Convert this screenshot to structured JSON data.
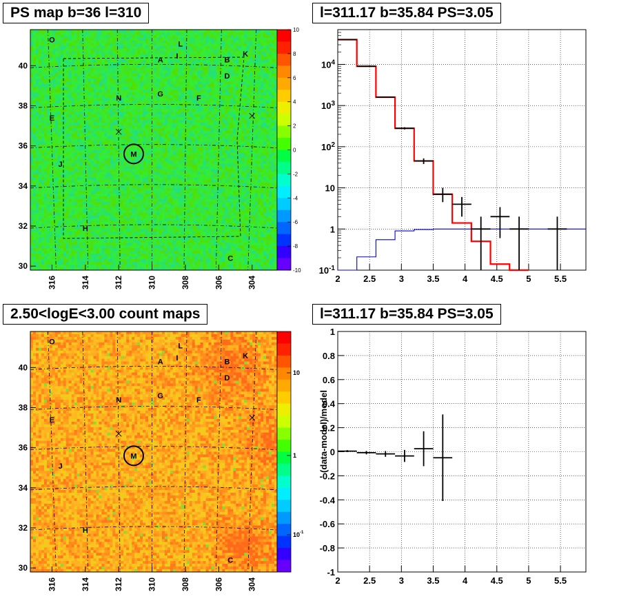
{
  "chart_data": [
    {
      "type": "heatmap",
      "title": "PS map b=36 l=310",
      "x_ticks": [
        "316",
        "314",
        "312",
        "310",
        "308",
        "306",
        "304"
      ],
      "y_ticks": [
        "30",
        "32",
        "34",
        "36",
        "38",
        "40"
      ],
      "colorbar_ticks": [
        "10",
        "8",
        "6",
        "4",
        "2",
        "0",
        "-2",
        "-4",
        "-6",
        "-8",
        "-10"
      ],
      "colorbar_range": [
        -10,
        10
      ],
      "map_tint": "green",
      "source_labels": [
        {
          "label": "O",
          "l": 316.0,
          "b": 41.3
        },
        {
          "label": "L",
          "l": 308.3,
          "b": 41.1
        },
        {
          "label": "I",
          "l": 308.5,
          "b": 40.5
        },
        {
          "label": "K",
          "l": 304.4,
          "b": 40.6
        },
        {
          "label": "A",
          "l": 309.5,
          "b": 40.3
        },
        {
          "label": "B",
          "l": 305.5,
          "b": 40.3
        },
        {
          "label": "D",
          "l": 305.5,
          "b": 39.5
        },
        {
          "label": "N",
          "l": 312.0,
          "b": 38.4
        },
        {
          "label": "G",
          "l": 309.5,
          "b": 38.6
        },
        {
          "label": "F",
          "l": 307.2,
          "b": 38.4
        },
        {
          "label": "E",
          "l": 316.0,
          "b": 37.4
        },
        {
          "label": "J",
          "l": 315.5,
          "b": 35.1
        },
        {
          "label": "H",
          "l": 314.0,
          "b": 31.9
        },
        {
          "label": "C",
          "l": 305.3,
          "b": 30.4
        }
      ],
      "circled_source": {
        "label": "M",
        "l": 311.1,
        "b": 35.6
      },
      "cross_markers": [
        {
          "l": 312.0,
          "b": 36.7
        },
        {
          "l": 304.0,
          "b": 37.5
        }
      ]
    },
    {
      "type": "line",
      "title": "l=311.17 b=35.84 PS=3.05",
      "xlim": [
        2.0,
        5.9
      ],
      "ylim": [
        0.1,
        70000
      ],
      "ylog": true,
      "x_ticks": [
        "2",
        "2.5",
        "3",
        "3.5",
        "4",
        "4.5",
        "5",
        "5.5"
      ],
      "y_ticks": [
        "10^{-1}",
        "1",
        "10",
        "10^{2}",
        "10^{3}",
        "10^{4}"
      ],
      "series": [
        {
          "color": "#ff0000",
          "edges": [
            2.0,
            2.3,
            2.6,
            2.9,
            3.2,
            3.5,
            3.8,
            4.1,
            4.4,
            4.7,
            5.0
          ],
          "values": [
            40000,
            9000,
            1600,
            280,
            45,
            7,
            1.4,
            0.5,
            0.14,
            0.1
          ]
        },
        {
          "color": "#0000cc",
          "edges": [
            2.0,
            2.3,
            2.6,
            2.9,
            3.2,
            3.5,
            3.8,
            4.1,
            4.4,
            4.7,
            5.0,
            5.3,
            5.9
          ],
          "values": [
            0.09,
            0.21,
            0.55,
            0.9,
            0.97,
            1.0,
            1.0,
            1.0,
            1.0,
            1.0,
            1.0,
            1.0
          ]
        },
        {
          "color": "#000000",
          "points": [
            {
              "x": 2.15,
              "y": 40000,
              "xe": 0.15,
              "lo": 39800,
              "hi": 40200
            },
            {
              "x": 2.45,
              "y": 9000,
              "xe": 0.15,
              "lo": 8900,
              "hi": 9100
            },
            {
              "x": 2.75,
              "y": 1600,
              "xe": 0.15,
              "lo": 1560,
              "hi": 1640
            },
            {
              "x": 3.05,
              "y": 280,
              "xe": 0.15,
              "lo": 263,
              "hi": 297
            },
            {
              "x": 3.35,
              "y": 45,
              "xe": 0.15,
              "lo": 38,
              "hi": 52
            },
            {
              "x": 3.65,
              "y": 7,
              "xe": 0.15,
              "lo": 4.5,
              "hi": 10
            },
            {
              "x": 3.95,
              "y": 4,
              "xe": 0.15,
              "lo": 2,
              "hi": 6
            },
            {
              "x": 4.25,
              "y": 1,
              "xe": 0.15,
              "lo": 0.1,
              "hi": 2
            },
            {
              "x": 4.55,
              "y": 2,
              "xe": 0.15,
              "lo": 0.6,
              "hi": 3.4
            },
            {
              "x": 4.85,
              "y": 1,
              "xe": 0.15,
              "lo": 0.1,
              "hi": 2
            },
            {
              "x": 5.45,
              "y": 1,
              "xe": 0.15,
              "lo": 0.1,
              "hi": 2
            }
          ]
        }
      ]
    },
    {
      "type": "heatmap",
      "title": "2.50<logE<3.00 count maps",
      "x_ticks": [
        "316",
        "314",
        "312",
        "310",
        "308",
        "306",
        "304"
      ],
      "y_ticks": [
        "30",
        "32",
        "34",
        "36",
        "38",
        "40"
      ],
      "colorbar_ticks": [
        "10",
        "1",
        "10^{-1}"
      ],
      "colorbar_log": true,
      "map_tint": "orange",
      "source_labels": [
        {
          "label": "O",
          "l": 316.0,
          "b": 41.3
        },
        {
          "label": "L",
          "l": 308.3,
          "b": 41.1
        },
        {
          "label": "I",
          "l": 308.5,
          "b": 40.5
        },
        {
          "label": "K",
          "l": 304.4,
          "b": 40.6
        },
        {
          "label": "A",
          "l": 309.5,
          "b": 40.3
        },
        {
          "label": "B",
          "l": 305.5,
          "b": 40.3
        },
        {
          "label": "D",
          "l": 305.5,
          "b": 39.5
        },
        {
          "label": "N",
          "l": 312.0,
          "b": 38.4
        },
        {
          "label": "G",
          "l": 309.5,
          "b": 38.6
        },
        {
          "label": "F",
          "l": 307.2,
          "b": 38.4
        },
        {
          "label": "E",
          "l": 316.0,
          "b": 37.4
        },
        {
          "label": "J",
          "l": 315.5,
          "b": 35.1
        },
        {
          "label": "H",
          "l": 314.0,
          "b": 31.9
        },
        {
          "label": "C",
          "l": 305.3,
          "b": 30.4
        }
      ],
      "circled_source": {
        "label": "M",
        "l": 311.1,
        "b": 35.6
      },
      "cross_markers": [
        {
          "l": 312.0,
          "b": 36.7
        },
        {
          "l": 304.0,
          "b": 37.5
        }
      ]
    },
    {
      "type": "scatter",
      "title": "l=311.17 b=35.84 PS=3.05",
      "ylabel": "(data-model)/model",
      "xlim": [
        2.0,
        5.9
      ],
      "ylim": [
        -1,
        1
      ],
      "x_ticks": [
        "2",
        "2.5",
        "3",
        "3.5",
        "4",
        "4.5",
        "5",
        "5.5"
      ],
      "y_ticks": [
        "1",
        "0.8",
        "0.6",
        "0.4",
        "0.2",
        "0",
        "-0.2",
        "-0.4",
        "-0.6",
        "-0.8",
        "-1"
      ],
      "points": [
        {
          "x": 2.15,
          "y": 0.005,
          "xe": 0.15,
          "lo": -0.003,
          "hi": 0.013
        },
        {
          "x": 2.45,
          "y": -0.008,
          "xe": 0.15,
          "lo": -0.022,
          "hi": 0.006
        },
        {
          "x": 2.75,
          "y": -0.018,
          "xe": 0.15,
          "lo": -0.042,
          "hi": 0.006
        },
        {
          "x": 3.05,
          "y": -0.035,
          "xe": 0.15,
          "lo": -0.085,
          "hi": 0.015
        },
        {
          "x": 3.35,
          "y": 0.025,
          "xe": 0.15,
          "lo": -0.12,
          "hi": 0.17
        },
        {
          "x": 3.65,
          "y": -0.05,
          "xe": 0.15,
          "lo": -0.41,
          "hi": 0.31
        }
      ]
    }
  ]
}
